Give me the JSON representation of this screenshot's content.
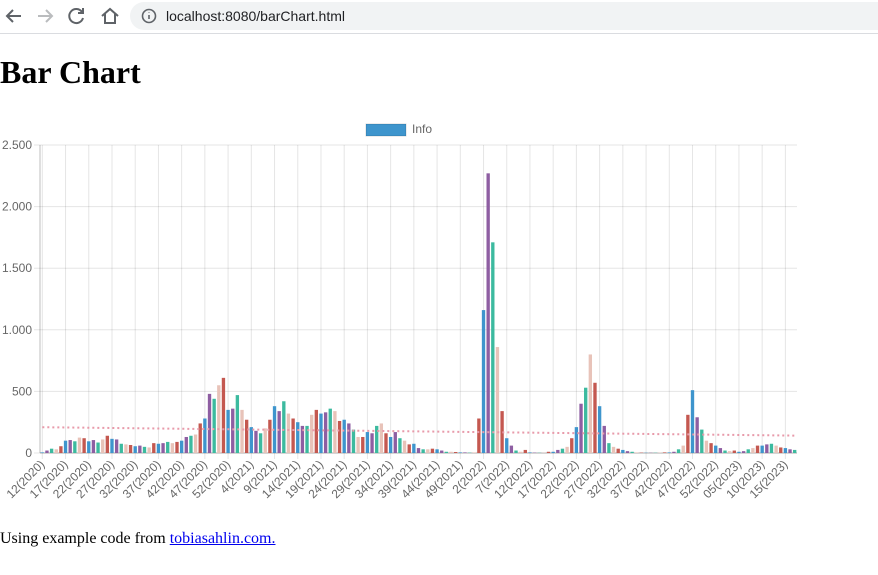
{
  "browser": {
    "url": "localhost:8080/barChart.html"
  },
  "heading": "Bar Chart",
  "chart_data": {
    "type": "bar",
    "categories": [
      "12(2020)",
      null,
      null,
      null,
      null,
      "17(2020)",
      null,
      null,
      null,
      null,
      "22(2020)",
      null,
      null,
      null,
      null,
      "27(2020)",
      null,
      null,
      null,
      null,
      "32(2020)",
      null,
      null,
      null,
      null,
      "37(2020)",
      null,
      null,
      null,
      null,
      "42(2020)",
      null,
      null,
      null,
      null,
      "47(2020)",
      null,
      null,
      null,
      null,
      "52(2020)",
      null,
      null,
      null,
      null,
      "4(2021)",
      null,
      null,
      null,
      null,
      "9(2021)",
      null,
      null,
      null,
      null,
      "14(2021)",
      null,
      null,
      null,
      null,
      "19(2021)",
      null,
      null,
      null,
      null,
      "24(2021)",
      null,
      null,
      null,
      null,
      "29(2021)",
      null,
      null,
      null,
      null,
      "34(2021)",
      null,
      null,
      null,
      null,
      "39(2021)",
      null,
      null,
      null,
      null,
      "44(2021)",
      null,
      null,
      null,
      null,
      "49(2021)",
      null,
      null,
      null,
      null,
      "2(2022)",
      null,
      null,
      null,
      null,
      "7(2022)",
      null,
      null,
      null,
      null,
      "12(2022)",
      null,
      null,
      null,
      null,
      "17(2022)",
      null,
      null,
      null,
      null,
      "22(2022)",
      null,
      null,
      null,
      null,
      "27(2022)",
      null,
      null,
      null,
      null,
      "32(2022)",
      null,
      null,
      null,
      null,
      "37(2022)",
      null,
      null,
      null,
      null,
      "42(2022)",
      null,
      null,
      null,
      null,
      "47(2022)",
      null,
      null,
      null,
      null,
      "52(2022)",
      null,
      null,
      null,
      null,
      "05(2023)",
      null,
      null,
      null,
      null,
      "10(2023)",
      null,
      null,
      null,
      null,
      "15(2023)",
      null,
      null
    ],
    "series": [
      {
        "name": "Info",
        "color": "#3e95cd",
        "values": [
          5,
          20,
          35,
          30,
          55,
          100,
          105,
          95,
          125,
          120,
          95,
          105,
          85,
          110,
          140,
          115,
          110,
          75,
          70,
          65,
          55,
          60,
          50,
          45,
          80,
          75,
          80,
          90,
          80,
          90,
          100,
          130,
          140,
          150,
          240,
          280,
          480,
          440,
          550,
          610,
          350,
          360,
          470,
          350,
          270,
          210,
          180,
          160,
          200,
          270,
          380,
          340,
          420,
          320,
          280,
          250,
          220,
          220,
          310,
          350,
          320,
          330,
          360,
          340,
          260,
          270,
          240,
          190,
          130,
          130,
          170,
          160,
          220,
          240,
          160,
          130,
          170,
          120,
          100,
          70,
          75,
          40,
          30,
          30,
          35,
          30,
          20,
          10,
          10,
          8,
          5,
          5,
          3,
          5,
          280,
          1160,
          2270,
          1710,
          860,
          340,
          120,
          60,
          20,
          10,
          25,
          5,
          3,
          2,
          2,
          10,
          10,
          25,
          35,
          50,
          120,
          210,
          400,
          530,
          800,
          570,
          380,
          220,
          80,
          50,
          35,
          25,
          15,
          10,
          5,
          3,
          2,
          2,
          2,
          3,
          5,
          5,
          10,
          30,
          60,
          310,
          510,
          290,
          190,
          100,
          80,
          60,
          40,
          20,
          15,
          20,
          10,
          15,
          30,
          40,
          60,
          60,
          70,
          75,
          60,
          45,
          40,
          30,
          25
        ]
      }
    ],
    "bar_colors": [
      "#3e95cd",
      "#8e5ea2",
      "#3cba9f",
      "#e8c3b9",
      "#c45850"
    ],
    "trendline": {
      "color": "#e89aaa"
    },
    "ylim": [
      0,
      2500
    ],
    "yticks": [
      0,
      500,
      {
        "value": 1000,
        "label": "1.000"
      },
      {
        "value": 1500,
        "label": "1.500"
      },
      {
        "value": 2000,
        "label": "2.000"
      },
      {
        "value": 2500,
        "label": "2.500"
      }
    ],
    "grid": true,
    "legend": "top"
  },
  "footer": {
    "text": "Using example code from",
    "link": "tobiasahlin.com."
  }
}
